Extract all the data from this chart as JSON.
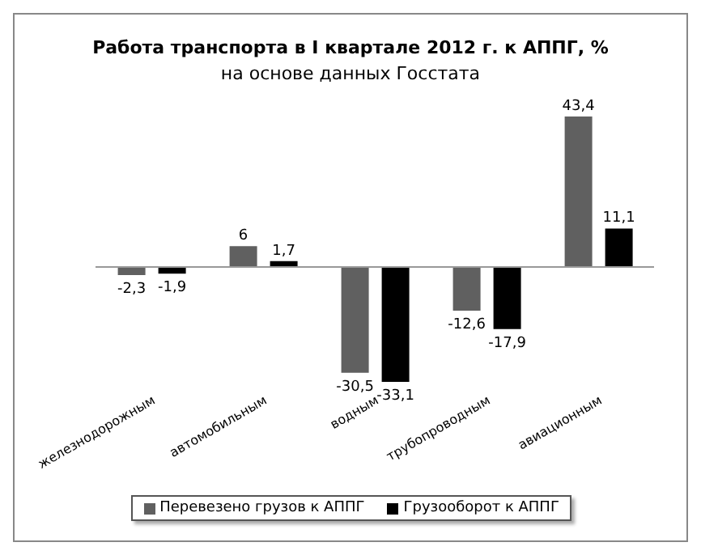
{
  "chart_data": {
    "type": "bar",
    "title": "Работа транспорта  в I квартале  2012 г. к АППГ, %",
    "subtitle": "на основе данных Госстата",
    "categories": [
      "железнодорожным",
      "автомобильным",
      "водным",
      "трубопроводным",
      "авиационным"
    ],
    "series": [
      {
        "name": "Перевезено грузов к АППГ",
        "color": "#606060",
        "values": [
          -2.3,
          6,
          -30.5,
          -12.6,
          43.4
        ],
        "value_labels": [
          "-2,3",
          "6",
          "-30,5",
          "-12,6",
          "43,4"
        ]
      },
      {
        "name": "Грузооборот к АППГ",
        "color": "#000000",
        "values": [
          -1.9,
          1.7,
          -33.1,
          -17.9,
          11.1
        ],
        "value_labels": [
          "-1,9",
          "1,7",
          "-33,1",
          "-17,9",
          "11,1"
        ]
      }
    ],
    "legend": "bottom",
    "tick_labels": "x"
  }
}
